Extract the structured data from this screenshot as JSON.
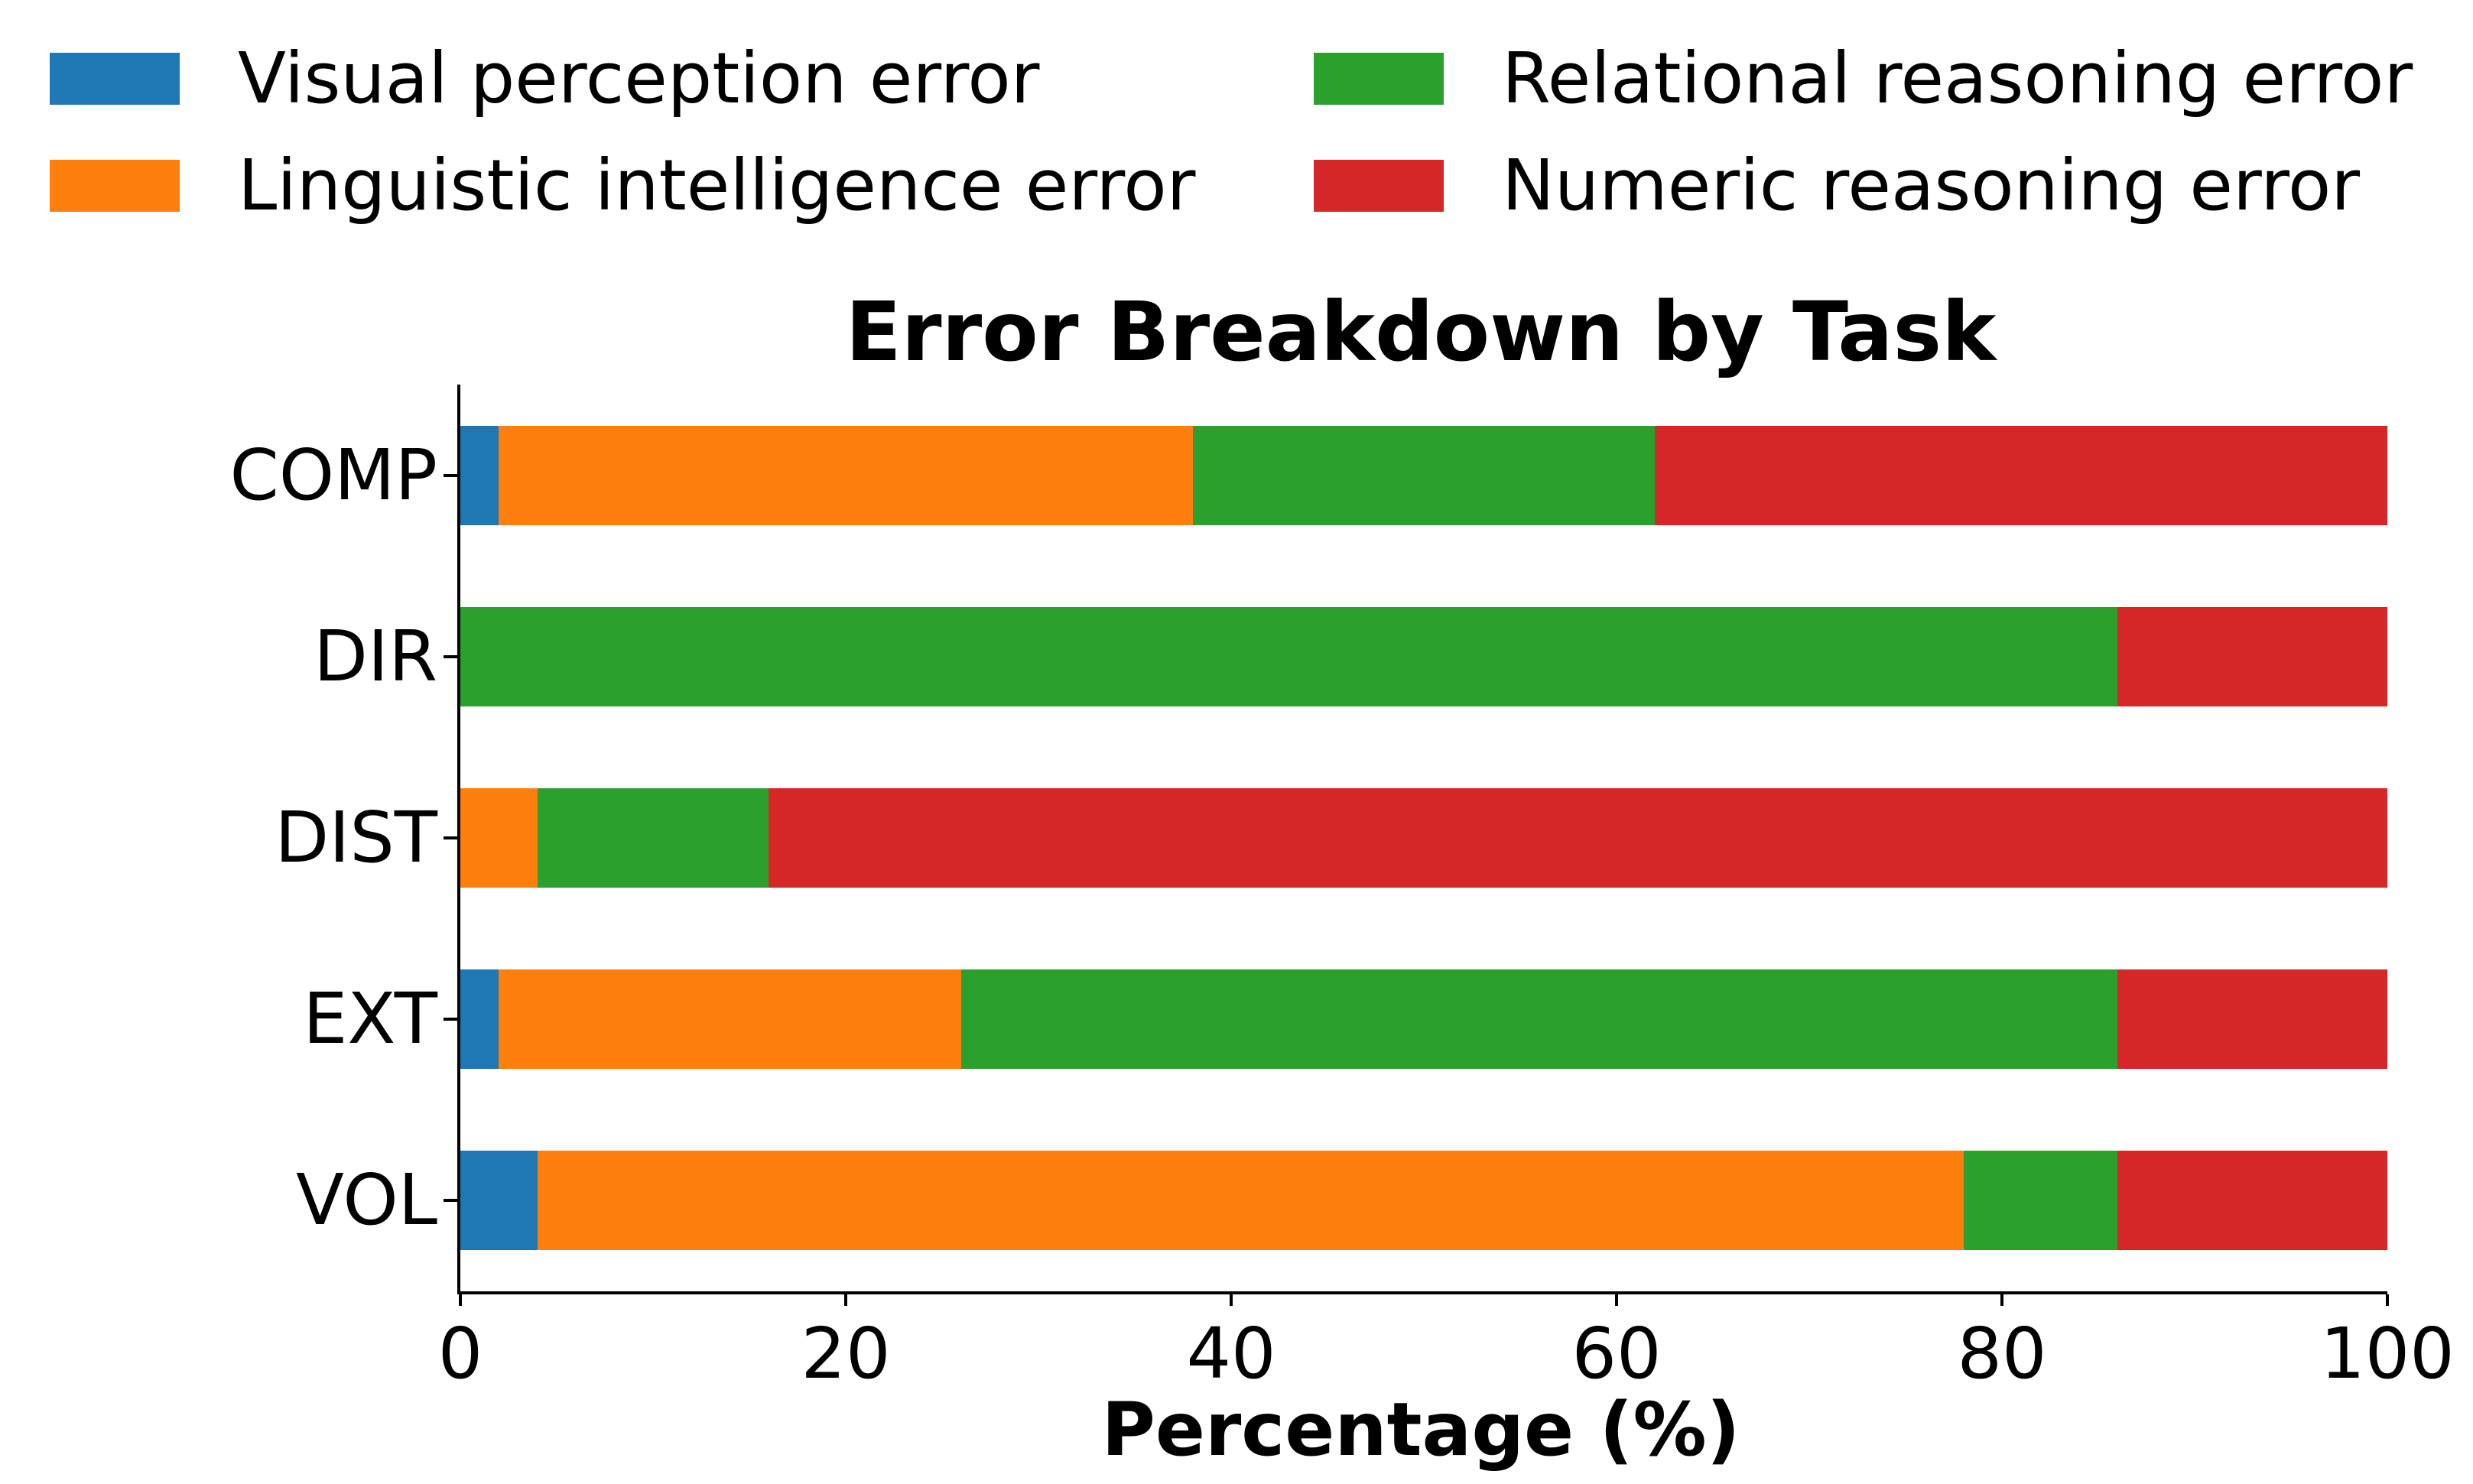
{
  "chart_data": {
    "type": "bar",
    "orientation": "horizontal",
    "stacked": true,
    "title": "Error Breakdown by Task",
    "xlabel": "Percentage (%)",
    "ylabel": "",
    "xlim": [
      0,
      100
    ],
    "xticks": [
      0,
      20,
      40,
      60,
      80,
      100
    ],
    "categories": [
      "COMP",
      "DIR",
      "DIST",
      "EXT",
      "VOL"
    ],
    "series": [
      {
        "name": "Visual perception error",
        "color": "#1f77b4",
        "values": [
          2,
          0,
          0,
          2,
          4
        ]
      },
      {
        "name": "Linguistic intelligence error",
        "color": "#ff7f0e",
        "values": [
          36,
          0,
          4,
          24,
          74
        ]
      },
      {
        "name": "Relational reasoning error",
        "color": "#2ca02c",
        "values": [
          24,
          86,
          12,
          60,
          8
        ]
      },
      {
        "name": "Numeric reasoning error",
        "color": "#d62728",
        "values": [
          38,
          14,
          84,
          14,
          14
        ]
      }
    ],
    "legend": {
      "position": "upper left",
      "columns": 2,
      "frame": false
    },
    "grid": false,
    "axis_color": "#000000",
    "background_color": "#ffffff"
  }
}
